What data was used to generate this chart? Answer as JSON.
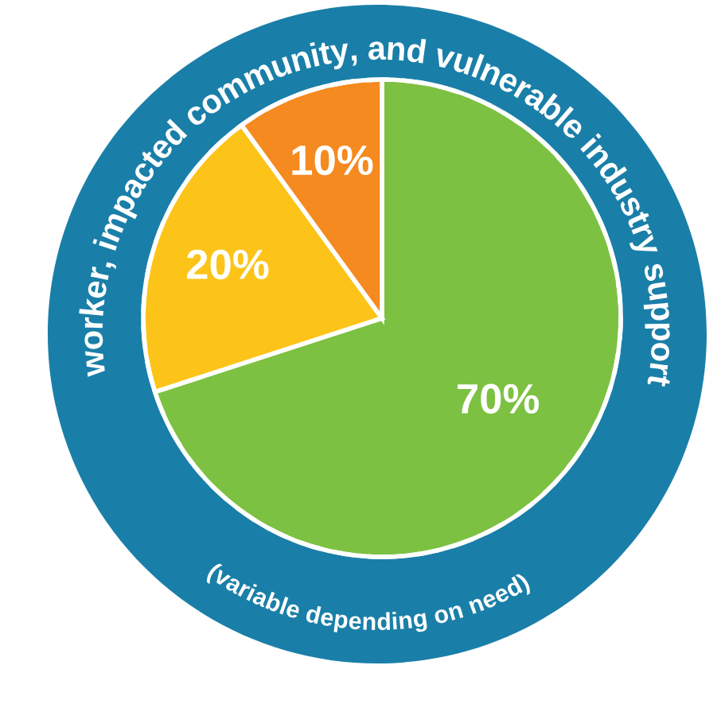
{
  "chart_data": {
    "type": "pie",
    "categories": [
      null,
      null,
      null
    ],
    "values": [
      70,
      20,
      10
    ],
    "colors": [
      "#7dc142",
      "#fcc419",
      "#f58a20"
    ],
    "value_labels": [
      "70%",
      "20%",
      "10%"
    ],
    "annotations": [
      "worker, impacted community, and vulnerable industry support",
      "(variable depending on need)"
    ]
  }
}
